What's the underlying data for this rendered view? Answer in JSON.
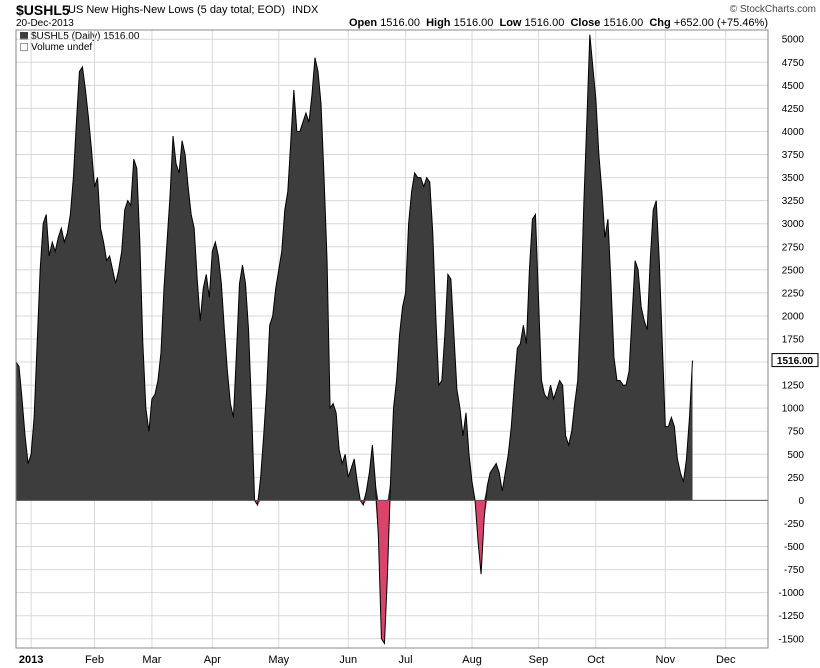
{
  "header": {
    "symbol": "$USHL5",
    "description": "US New Highs-New Lows (5 day total; EOD)",
    "exchange": "INDX",
    "date": "20-Dec-2013",
    "brand": "© StockCharts.com",
    "open_label": "Open",
    "open_value": "1516.00",
    "high_label": "High",
    "high_value": "1516.00",
    "low_label": "Low",
    "low_value": "1516.00",
    "close_label": "Close",
    "close_value": "1516.00",
    "chg_label": "Chg",
    "chg_value": "+652.00 (+75.46%)"
  },
  "legend": {
    "series_label": "$USHL5 (Daily) 1516.00",
    "volume_label": "Volume undef"
  },
  "colors": {
    "positive_fill": "#3d3d3d",
    "negative_fill": "#d9456a",
    "grid": "#d8d8d8",
    "line": "#000000"
  },
  "chart_data": {
    "type": "area",
    "x_unit": "trading day of 2013 (approx.)",
    "y_ticks": [
      "-1500",
      "-1250",
      "-1000",
      "-750",
      "-500",
      "-250",
      "0",
      "250",
      "500",
      "750",
      "1000",
      "1250",
      "1500",
      "1750",
      "2000",
      "2250",
      "2500",
      "2750",
      "3000",
      "3250",
      "3500",
      "3750",
      "4000",
      "4250",
      "4500",
      "4750",
      "5000"
    ],
    "ylim": [
      -1600,
      5100
    ],
    "x_ticks": [
      {
        "label": "2013",
        "x": 0,
        "bold": true
      },
      {
        "label": "Feb",
        "x": 21
      },
      {
        "label": "Mar",
        "x": 40
      },
      {
        "label": "Apr",
        "x": 60
      },
      {
        "label": "May",
        "x": 82
      },
      {
        "label": "Jun",
        "x": 105
      },
      {
        "label": "Jul",
        "x": 124
      },
      {
        "label": "Aug",
        "x": 146
      },
      {
        "label": "Sep",
        "x": 168
      },
      {
        "label": "Oct",
        "x": 187
      },
      {
        "label": "Nov",
        "x": 210
      },
      {
        "label": "Dec",
        "x": 230
      }
    ],
    "xlim": [
      -5,
      244
    ],
    "last_value_label": "1516.00",
    "last_value": 1516,
    "points": [
      [
        -5,
        1500
      ],
      [
        -4,
        1450
      ],
      [
        -3,
        1100
      ],
      [
        -2,
        700
      ],
      [
        -1,
        400
      ],
      [
        0,
        500
      ],
      [
        1,
        900
      ],
      [
        2,
        1700
      ],
      [
        3,
        2500
      ],
      [
        4,
        3000
      ],
      [
        5,
        3100
      ],
      [
        6,
        2650
      ],
      [
        7,
        2800
      ],
      [
        8,
        2700
      ],
      [
        9,
        2850
      ],
      [
        10,
        2950
      ],
      [
        11,
        2800
      ],
      [
        12,
        2900
      ],
      [
        13,
        3100
      ],
      [
        14,
        3500
      ],
      [
        15,
        4100
      ],
      [
        16,
        4650
      ],
      [
        17,
        4700
      ],
      [
        18,
        4450
      ],
      [
        19,
        4150
      ],
      [
        20,
        3800
      ],
      [
        21,
        3400
      ],
      [
        22,
        3500
      ],
      [
        23,
        2950
      ],
      [
        24,
        2800
      ],
      [
        25,
        2600
      ],
      [
        26,
        2650
      ],
      [
        27,
        2500
      ],
      [
        28,
        2350
      ],
      [
        29,
        2500
      ],
      [
        30,
        2700
      ],
      [
        31,
        3150
      ],
      [
        32,
        3250
      ],
      [
        33,
        3200
      ],
      [
        34,
        3700
      ],
      [
        35,
        3600
      ],
      [
        36,
        2800
      ],
      [
        37,
        1700
      ],
      [
        38,
        1000
      ],
      [
        39,
        750
      ],
      [
        40,
        1100
      ],
      [
        41,
        1150
      ],
      [
        42,
        1300
      ],
      [
        43,
        1600
      ],
      [
        44,
        2300
      ],
      [
        45,
        2800
      ],
      [
        46,
        3300
      ],
      [
        47,
        3950
      ],
      [
        48,
        3650
      ],
      [
        49,
        3550
      ],
      [
        50,
        3900
      ],
      [
        51,
        3750
      ],
      [
        52,
        3400
      ],
      [
        53,
        3100
      ],
      [
        54,
        2950
      ],
      [
        55,
        2400
      ],
      [
        56,
        1950
      ],
      [
        57,
        2300
      ],
      [
        58,
        2450
      ],
      [
        59,
        2200
      ],
      [
        60,
        2700
      ],
      [
        61,
        2800
      ],
      [
        62,
        2650
      ],
      [
        63,
        2350
      ],
      [
        64,
        1850
      ],
      [
        65,
        1400
      ],
      [
        66,
        1050
      ],
      [
        67,
        900
      ],
      [
        68,
        1600
      ],
      [
        69,
        2350
      ],
      [
        70,
        2550
      ],
      [
        71,
        2350
      ],
      [
        72,
        1850
      ],
      [
        73,
        1000
      ],
      [
        74,
        0
      ],
      [
        75,
        -50
      ],
      [
        76,
        250
      ],
      [
        77,
        700
      ],
      [
        78,
        1200
      ],
      [
        79,
        1900
      ],
      [
        80,
        2000
      ],
      [
        81,
        2300
      ],
      [
        82,
        2500
      ],
      [
        83,
        2700
      ],
      [
        84,
        3150
      ],
      [
        85,
        3350
      ],
      [
        86,
        3900
      ],
      [
        87,
        4450
      ],
      [
        88,
        4000
      ],
      [
        89,
        4000
      ],
      [
        90,
        4100
      ],
      [
        91,
        4200
      ],
      [
        92,
        4100
      ],
      [
        93,
        4400
      ],
      [
        94,
        4800
      ],
      [
        95,
        4650
      ],
      [
        96,
        4300
      ],
      [
        97,
        3500
      ],
      [
        98,
        2600
      ],
      [
        99,
        1000
      ],
      [
        100,
        1050
      ],
      [
        101,
        950
      ],
      [
        102,
        550
      ],
      [
        103,
        400
      ],
      [
        104,
        500
      ],
      [
        105,
        250
      ],
      [
        106,
        350
      ],
      [
        107,
        450
      ],
      [
        108,
        200
      ],
      [
        109,
        0
      ],
      [
        110,
        -50
      ],
      [
        111,
        100
      ],
      [
        112,
        300
      ],
      [
        113,
        600
      ],
      [
        114,
        200
      ],
      [
        115,
        -400
      ],
      [
        116,
        -1500
      ],
      [
        117,
        -1550
      ],
      [
        118,
        -800
      ],
      [
        119,
        200
      ],
      [
        120,
        1000
      ],
      [
        121,
        1300
      ],
      [
        122,
        1800
      ],
      [
        123,
        2100
      ],
      [
        124,
        2250
      ],
      [
        125,
        3000
      ],
      [
        126,
        3350
      ],
      [
        127,
        3550
      ],
      [
        128,
        3500
      ],
      [
        129,
        3500
      ],
      [
        130,
        3400
      ],
      [
        131,
        3500
      ],
      [
        132,
        3450
      ],
      [
        133,
        2900
      ],
      [
        134,
        2000
      ],
      [
        135,
        1250
      ],
      [
        136,
        1300
      ],
      [
        137,
        1800
      ],
      [
        138,
        2450
      ],
      [
        139,
        2400
      ],
      [
        140,
        1800
      ],
      [
        141,
        1200
      ],
      [
        142,
        1000
      ],
      [
        143,
        700
      ],
      [
        144,
        950
      ],
      [
        145,
        500
      ],
      [
        146,
        200
      ],
      [
        147,
        0
      ],
      [
        148,
        -450
      ],
      [
        149,
        -800
      ],
      [
        150,
        -200
      ],
      [
        151,
        150
      ],
      [
        152,
        300
      ],
      [
        153,
        350
      ],
      [
        154,
        400
      ],
      [
        155,
        300
      ],
      [
        156,
        100
      ],
      [
        157,
        300
      ],
      [
        158,
        500
      ],
      [
        159,
        800
      ],
      [
        160,
        1250
      ],
      [
        161,
        1650
      ],
      [
        162,
        1700
      ],
      [
        163,
        1900
      ],
      [
        164,
        1700
      ],
      [
        165,
        2500
      ],
      [
        166,
        3050
      ],
      [
        167,
        3100
      ],
      [
        168,
        2200
      ],
      [
        169,
        1300
      ],
      [
        170,
        1150
      ],
      [
        171,
        1100
      ],
      [
        172,
        1250
      ],
      [
        173,
        1100
      ],
      [
        174,
        1200
      ],
      [
        175,
        1300
      ],
      [
        176,
        1250
      ],
      [
        177,
        700
      ],
      [
        178,
        600
      ],
      [
        179,
        750
      ],
      [
        180,
        1050
      ],
      [
        181,
        1300
      ],
      [
        182,
        2100
      ],
      [
        183,
        3200
      ],
      [
        184,
        4100
      ],
      [
        185,
        5050
      ],
      [
        186,
        4700
      ],
      [
        187,
        4350
      ],
      [
        188,
        3750
      ],
      [
        189,
        3350
      ],
      [
        190,
        2850
      ],
      [
        191,
        3050
      ],
      [
        192,
        2350
      ],
      [
        193,
        1550
      ],
      [
        194,
        1300
      ],
      [
        195,
        1300
      ],
      [
        196,
        1250
      ],
      [
        197,
        1250
      ],
      [
        198,
        1400
      ],
      [
        199,
        2000
      ],
      [
        200,
        2600
      ],
      [
        201,
        2500
      ],
      [
        202,
        2100
      ],
      [
        203,
        1950
      ],
      [
        204,
        1850
      ],
      [
        205,
        2600
      ],
      [
        206,
        3150
      ],
      [
        207,
        3250
      ],
      [
        208,
        2600
      ],
      [
        209,
        1700
      ],
      [
        210,
        800
      ],
      [
        211,
        800
      ],
      [
        212,
        900
      ],
      [
        213,
        800
      ],
      [
        214,
        450
      ],
      [
        215,
        300
      ],
      [
        216,
        200
      ],
      [
        217,
        450
      ],
      [
        218,
        900
      ],
      [
        219,
        1516
      ]
    ]
  }
}
